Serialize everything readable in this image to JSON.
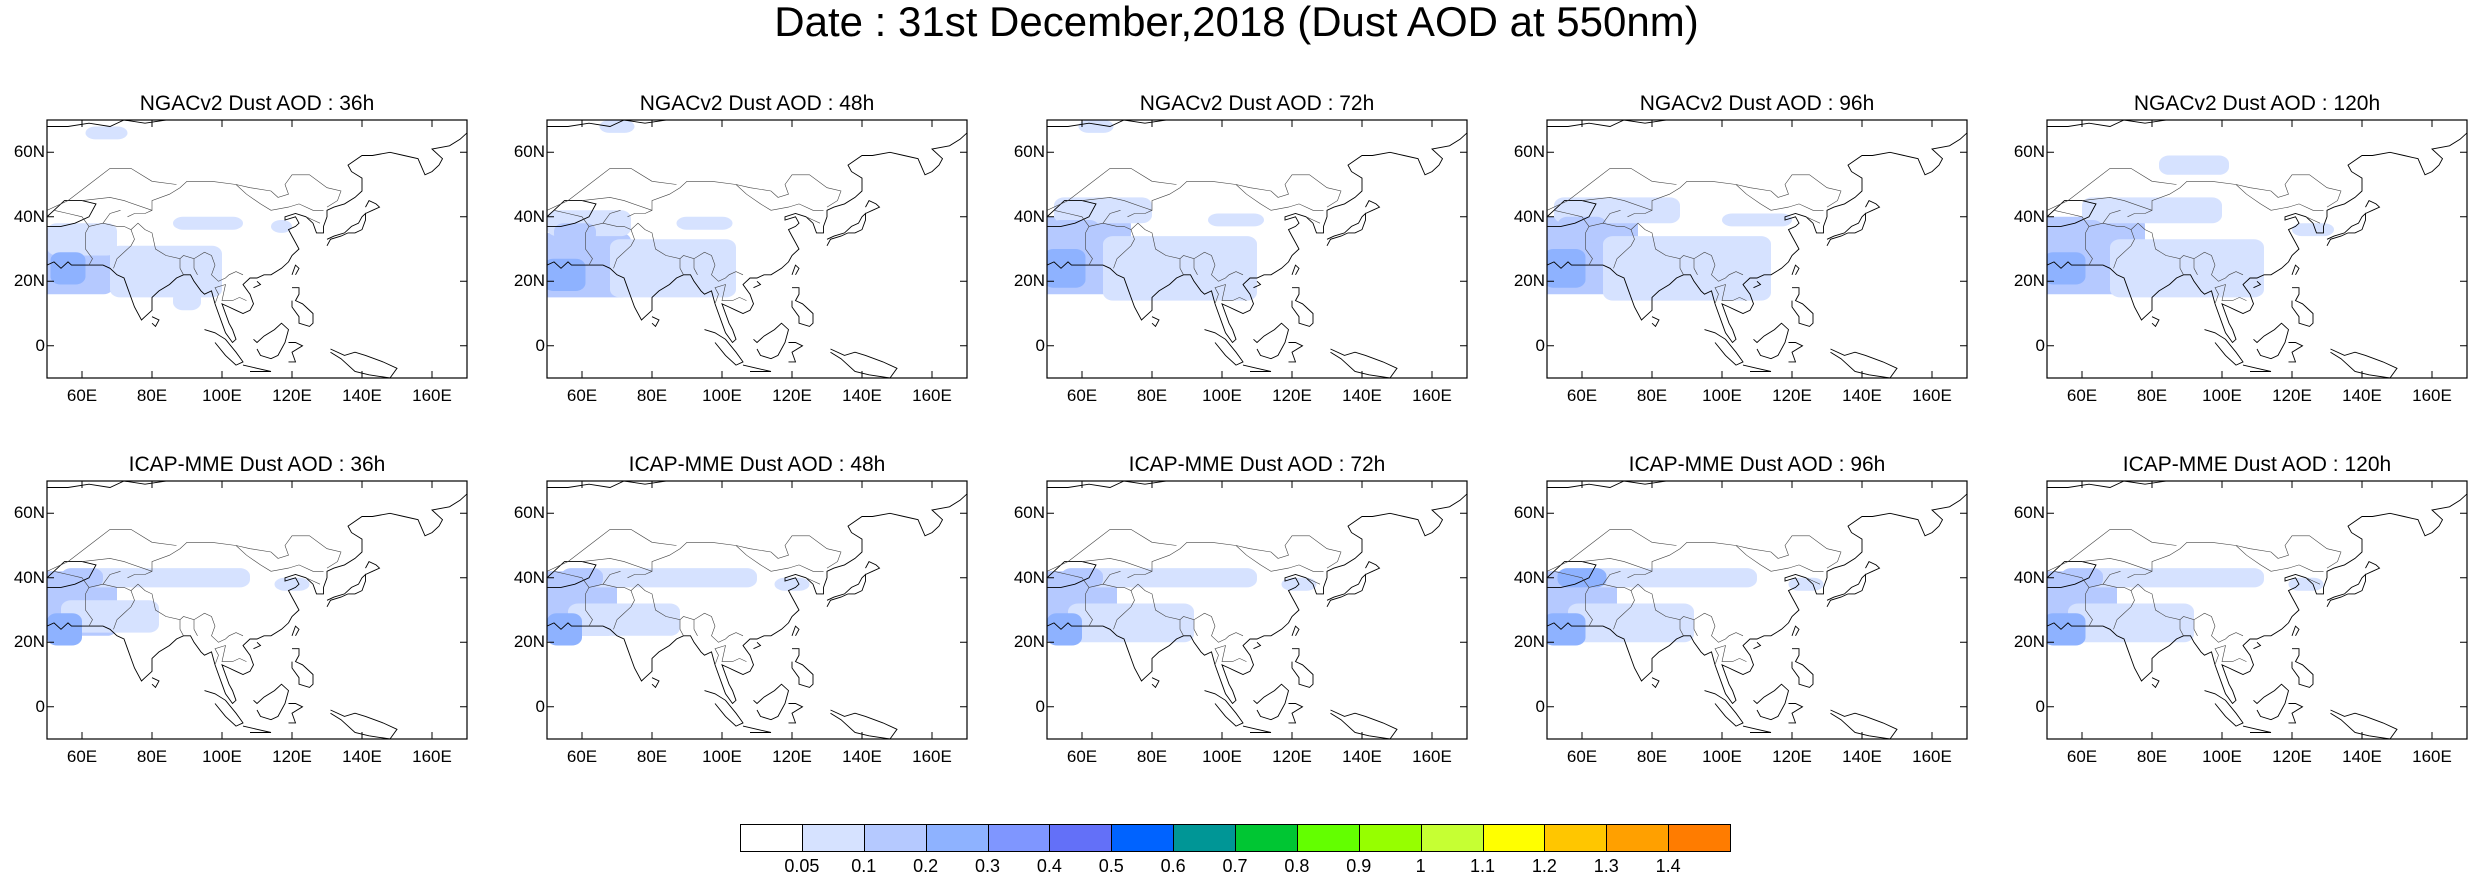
{
  "title": "Date : 31st December,2018 (Dust AOD at 550nm)",
  "axes": {
    "lat_ticks": [
      "60N",
      "40N",
      "20N",
      "0"
    ],
    "lon_ticks": [
      "60E",
      "80E",
      "100E",
      "120E",
      "140E",
      "160E"
    ],
    "lon_range": [
      50,
      170
    ],
    "lat_range": [
      -10,
      70
    ]
  },
  "panels": [
    {
      "title": "NGACv2 Dust AOD : 36h",
      "model": "NGACv2",
      "lead": "36h"
    },
    {
      "title": "NGACv2 Dust AOD : 48h",
      "model": "NGACv2",
      "lead": "48h"
    },
    {
      "title": "NGACv2 Dust AOD : 72h",
      "model": "NGACv2",
      "lead": "72h"
    },
    {
      "title": "NGACv2 Dust AOD : 96h",
      "model": "NGACv2",
      "lead": "96h"
    },
    {
      "title": "NGACv2 Dust AOD : 120h",
      "model": "NGACv2",
      "lead": "120h"
    },
    {
      "title": "ICAP-MME Dust AOD : 36h",
      "model": "ICAP-MME",
      "lead": "36h"
    },
    {
      "title": "ICAP-MME Dust AOD : 48h",
      "model": "ICAP-MME",
      "lead": "48h"
    },
    {
      "title": "ICAP-MME Dust AOD : 72h",
      "model": "ICAP-MME",
      "lead": "72h"
    },
    {
      "title": "ICAP-MME Dust AOD : 96h",
      "model": "ICAP-MME",
      "lead": "96h"
    },
    {
      "title": "ICAP-MME Dust AOD : 120h",
      "model": "ICAP-MME",
      "lead": "120h"
    }
  ],
  "colorbar": {
    "colors": [
      "#ffffff",
      "#d6e2ff",
      "#b5c9ff",
      "#8eb2ff",
      "#7f96ff",
      "#6370f8",
      "#0063ff",
      "#009696",
      "#00c633",
      "#63ff00",
      "#96ff00",
      "#c6ff33",
      "#ffff00",
      "#ffc600",
      "#ffa000",
      "#ff7c00",
      "#ff1900"
    ],
    "labels": [
      "0.05",
      "0.1",
      "0.2",
      "0.3",
      "0.4",
      "0.5",
      "0.6",
      "0.7",
      "0.8",
      "0.9",
      "1",
      "1.1",
      "1.2",
      "1.3",
      "1.4"
    ]
  }
}
